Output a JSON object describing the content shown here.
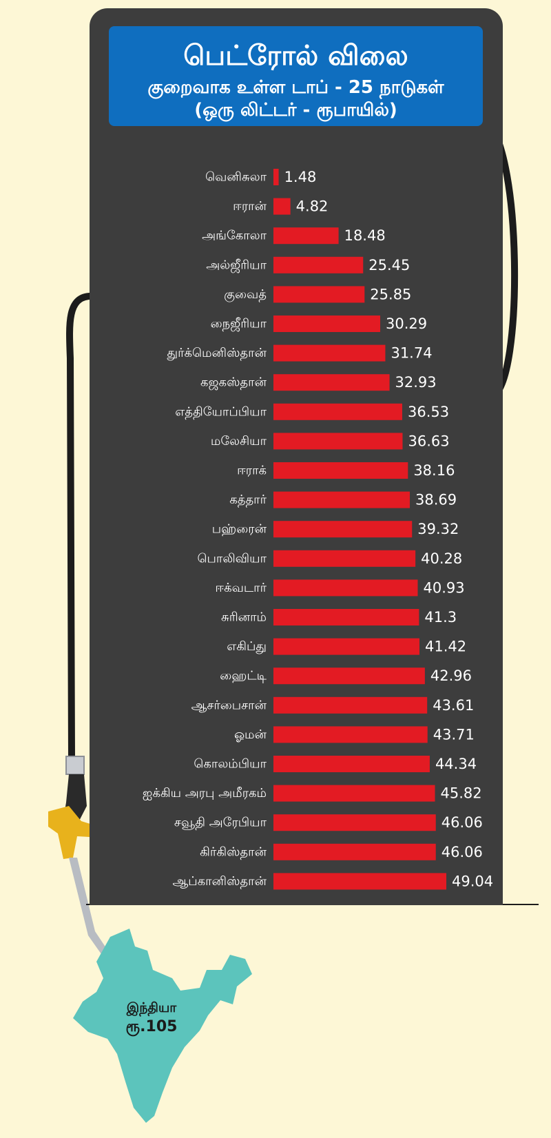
{
  "header": {
    "title": "பெட்ரோல் விலை",
    "subtitle": "குறைவாக உள்ள டாப் - 25 நாடுகள்",
    "unit_note": "(ஒரு லிட்டர் - ரூபாயில்)"
  },
  "india": {
    "name": "இந்தியா",
    "price_label": "ரூ.105"
  },
  "colors": {
    "background": "#fdf7d6",
    "pump": "#3d3d3d",
    "title_box": "#0f6ebf",
    "bar": "#e31b23",
    "india_map": "#5cc4bc",
    "nozzle_grip": "#e8b21c"
  },
  "chart_data": {
    "type": "bar",
    "orientation": "horizontal",
    "title": "பெட்ரோல் விலை",
    "subtitle": "குறைவாக உள்ள டாப் - 25 நாடுகள்",
    "categories": [
      "வெனிசுலா",
      "ஈரான்",
      "அங்கோலா",
      "அல்ஜீரியா",
      "குவைத்",
      "நைஜீரியா",
      "துர்க்மெனிஸ்தான்",
      "கஜகஸ்தான்",
      "எத்தியோப்பியா",
      "மலேசியா",
      "ஈராக்",
      "கத்தார்",
      "பஹ்ரைன்",
      "பொலிவியா",
      "ஈக்வடார்",
      "சுரினாம்",
      "எகிப்து",
      "ஹைட்டி",
      "ஆசர்பைசான்",
      "ஓமன்",
      "கொலம்பியா",
      "ஐக்கிய அரபு அமீரகம்",
      "சவூதி அரேபியா",
      "கிர்கிஸ்தான்",
      "ஆப்கானிஸ்தான்"
    ],
    "values": [
      1.48,
      4.82,
      18.48,
      25.45,
      25.85,
      30.29,
      31.74,
      32.93,
      36.53,
      36.63,
      38.16,
      38.69,
      39.32,
      40.28,
      40.93,
      41.3,
      41.42,
      42.96,
      43.61,
      43.71,
      44.34,
      45.82,
      46.06,
      46.06,
      49.04
    ],
    "value_labels": [
      "1.48",
      "4.82",
      "18.48",
      "25.45",
      "25.85",
      "30.29",
      "31.74",
      "32.93",
      "36.53",
      "36.63",
      "38.16",
      "38.69",
      "39.32",
      "40.28",
      "40.93",
      "41.3",
      "41.42",
      "42.96",
      "43.61",
      "43.71",
      "44.34",
      "45.82",
      "46.06",
      "46.06",
      "49.04"
    ],
    "xlim": [
      0,
      49.04
    ],
    "grid": false,
    "legend": "none"
  }
}
